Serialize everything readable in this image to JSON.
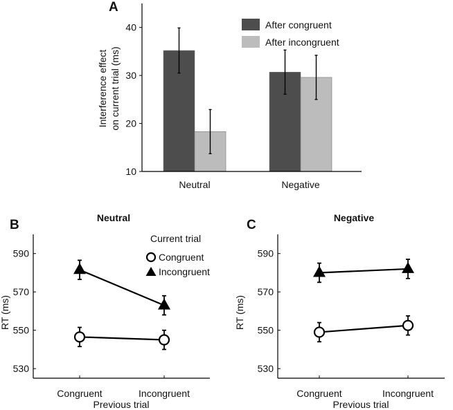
{
  "chart_data": [
    {
      "panel": "A",
      "type": "bar",
      "title": "",
      "ylabel": [
        "Interference  effect",
        "on current trial (ms)"
      ],
      "xlabel": "",
      "categories": [
        "Neutral",
        "Negative"
      ],
      "ylim": [
        10,
        45
      ],
      "yticks": [
        10,
        20,
        30,
        40
      ],
      "series": [
        {
          "name": "After congruent",
          "color": "#4d4d4d",
          "values": [
            35.2,
            30.7
          ],
          "errors": [
            4.7,
            4.6
          ]
        },
        {
          "name": "After incongruent",
          "color": "#bcbcbc",
          "values": [
            18.3,
            29.6
          ],
          "errors": [
            4.6,
            4.6
          ]
        }
      ],
      "legend": "top-right"
    },
    {
      "panel": "B",
      "type": "line",
      "title": "Neutral",
      "xlabel": "Previous trial",
      "ylabel": "RT (ms)",
      "categories": [
        "Congruent",
        "Incongruent"
      ],
      "ylim": [
        525,
        600
      ],
      "yticks": [
        530,
        550,
        570,
        590
      ],
      "legend_title": "Current trial",
      "series": [
        {
          "name": "Congruent",
          "marker": "circle",
          "values": [
            546.5,
            545.0
          ],
          "errors": [
            5.0,
            5.0
          ]
        },
        {
          "name": "Incongruent",
          "marker": "triangle",
          "values": [
            581.5,
            563.0
          ],
          "errors": [
            5.0,
            5.0
          ]
        }
      ]
    },
    {
      "panel": "C",
      "type": "line",
      "title": "Negative",
      "xlabel": "Previous trial",
      "ylabel": "RT (ms)",
      "categories": [
        "Congruent",
        "Incongruent"
      ],
      "ylim": [
        525,
        600
      ],
      "yticks": [
        530,
        550,
        570,
        590
      ],
      "series": [
        {
          "name": "Congruent",
          "marker": "circle",
          "values": [
            549.0,
            552.5
          ],
          "errors": [
            5.0,
            5.0
          ]
        },
        {
          "name": "Incongruent",
          "marker": "triangle",
          "values": [
            580.0,
            582.0
          ],
          "errors": [
            5.0,
            5.0
          ]
        }
      ]
    }
  ]
}
